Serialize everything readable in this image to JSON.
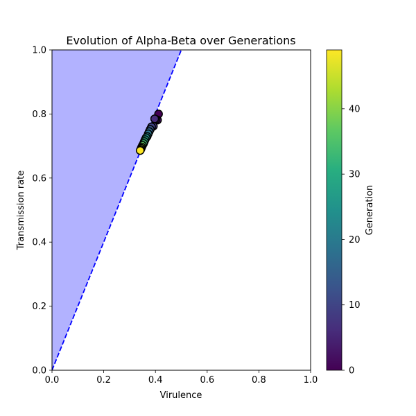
{
  "chart_data": {
    "type": "scatter",
    "title": "Evolution of Alpha-Beta over Generations",
    "xlabel": "Virulence",
    "ylabel": "Transmission rate",
    "xlim": [
      0,
      1
    ],
    "ylim": [
      0,
      1
    ],
    "xticks": [
      "0.0",
      "0.2",
      "0.4",
      "0.6",
      "0.8",
      "1.0"
    ],
    "yticks": [
      "0.0",
      "0.2",
      "0.4",
      "0.6",
      "0.8",
      "1.0"
    ],
    "grid": false,
    "boundary_line": {
      "slope": 2.0,
      "color": "#0000ff",
      "style": "dashed"
    },
    "shaded_region": {
      "description_visible": false,
      "color": "#b2b2ff",
      "above_line": true
    },
    "colorbar": {
      "label": "Generation",
      "colormap": "viridis",
      "range": [
        0,
        49
      ],
      "ticks": [
        "0",
        "10",
        "20",
        "30",
        "40"
      ]
    },
    "points": [
      {
        "generation": 0,
        "x": 0.412,
        "y": 0.8
      },
      {
        "generation": 2,
        "x": 0.408,
        "y": 0.781
      },
      {
        "generation": 4,
        "x": 0.402,
        "y": 0.783
      },
      {
        "generation": 6,
        "x": 0.397,
        "y": 0.785
      },
      {
        "generation": 8,
        "x": 0.392,
        "y": 0.762
      },
      {
        "generation": 10,
        "x": 0.385,
        "y": 0.76
      },
      {
        "generation": 13,
        "x": 0.38,
        "y": 0.752
      },
      {
        "generation": 16,
        "x": 0.376,
        "y": 0.745
      },
      {
        "generation": 19,
        "x": 0.372,
        "y": 0.738
      },
      {
        "generation": 22,
        "x": 0.368,
        "y": 0.73
      },
      {
        "generation": 25,
        "x": 0.364,
        "y": 0.726
      },
      {
        "generation": 28,
        "x": 0.36,
        "y": 0.72
      },
      {
        "generation": 31,
        "x": 0.357,
        "y": 0.714
      },
      {
        "generation": 34,
        "x": 0.354,
        "y": 0.708
      },
      {
        "generation": 37,
        "x": 0.35,
        "y": 0.702
      },
      {
        "generation": 40,
        "x": 0.347,
        "y": 0.697
      },
      {
        "generation": 43,
        "x": 0.345,
        "y": 0.693
      },
      {
        "generation": 46,
        "x": 0.343,
        "y": 0.689
      },
      {
        "generation": 49,
        "x": 0.341,
        "y": 0.686
      }
    ]
  }
}
